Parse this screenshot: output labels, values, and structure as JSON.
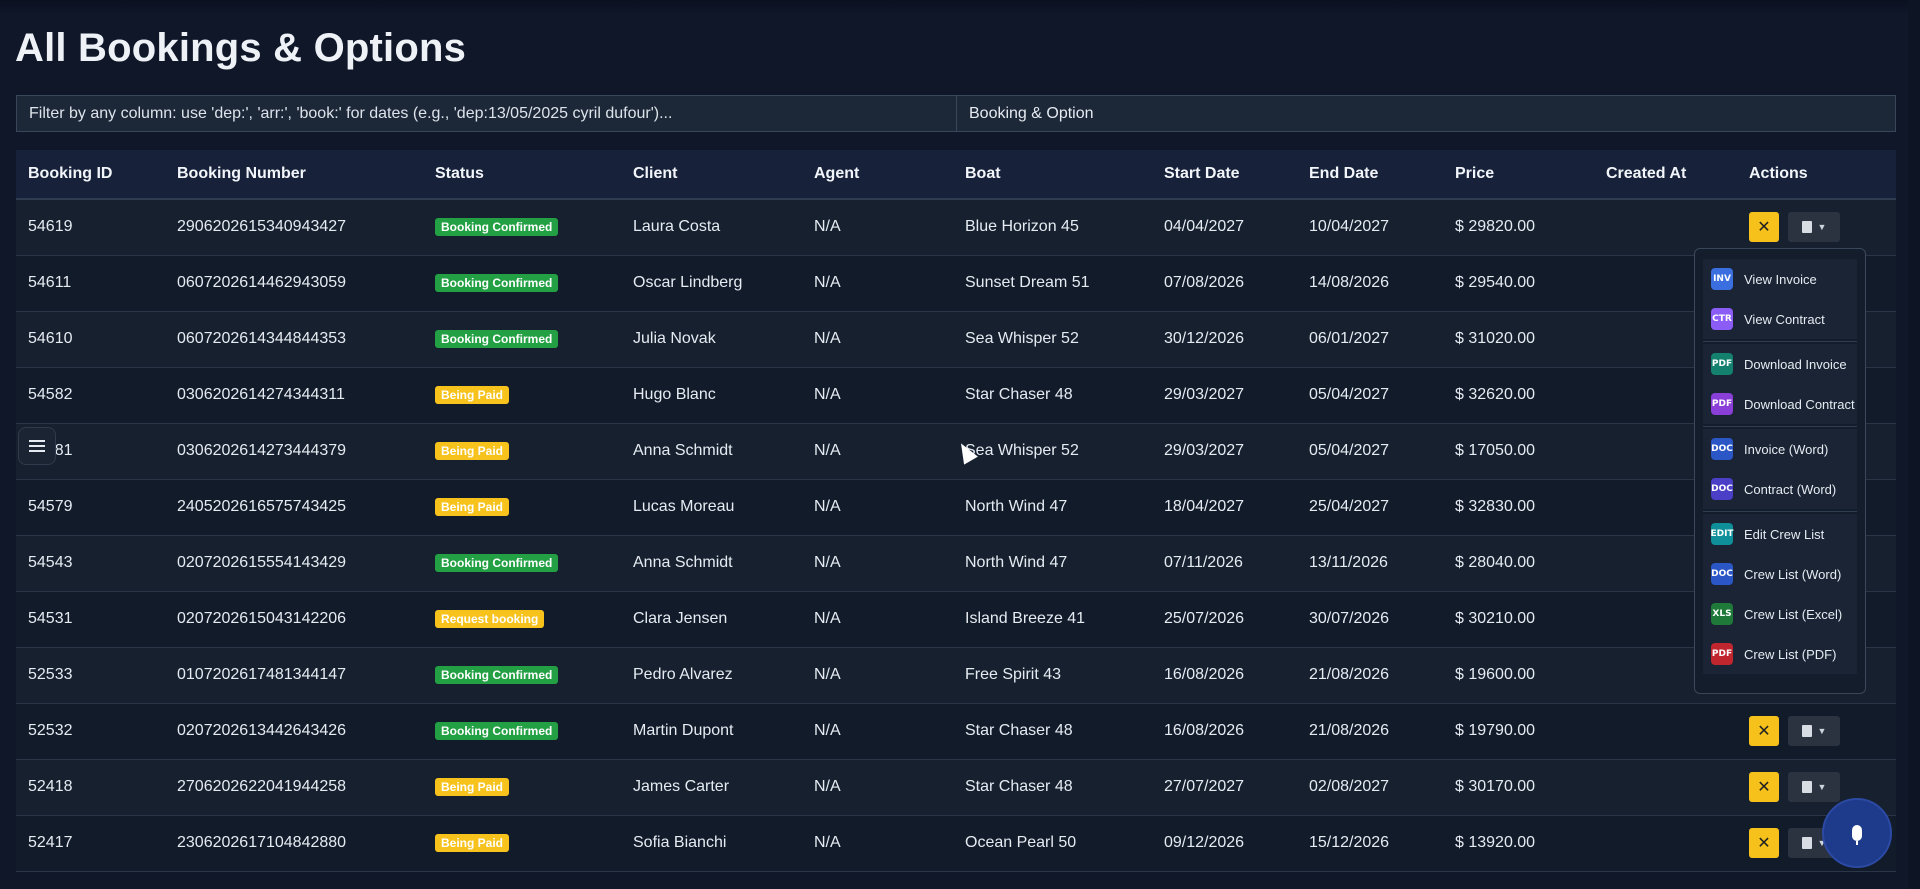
{
  "page": {
    "title": "All Bookings & Options"
  },
  "filters": {
    "search_placeholder": "Filter by any column: use 'dep:', 'arr:', 'book:' for dates (e.g., 'dep:13/05/2025 cyril dufour')...",
    "type_value": "Booking & Option"
  },
  "table": {
    "headers": [
      "Booking ID",
      "Booking Number",
      "Status",
      "Client",
      "Agent",
      "Boat",
      "Start Date",
      "End Date",
      "Price",
      "Created At",
      "Actions"
    ],
    "rows": [
      {
        "id": "54619",
        "number": "2906202615340943427",
        "status": "Booking Confirmed",
        "status_color": "green",
        "client": "Laura Costa",
        "agent": "N/A",
        "boat": "Blue Horizon 45",
        "start": "04/04/2027",
        "end": "10/04/2027",
        "price": "$ 29820.00",
        "created": ""
      },
      {
        "id": "54611",
        "number": "0607202614462943059",
        "status": "Booking Confirmed",
        "status_color": "green",
        "client": "Oscar Lindberg",
        "agent": "N/A",
        "boat": "Sunset Dream 51",
        "start": "07/08/2026",
        "end": "14/08/2026",
        "price": "$ 29540.00",
        "created": ""
      },
      {
        "id": "54610",
        "number": "0607202614344844353",
        "status": "Booking Confirmed",
        "status_color": "green",
        "client": "Julia Novak",
        "agent": "N/A",
        "boat": "Sea Whisper 52",
        "start": "30/12/2026",
        "end": "06/01/2027",
        "price": "$ 31020.00",
        "created": ""
      },
      {
        "id": "54582",
        "number": "0306202614274344311",
        "status": "Being Paid",
        "status_color": "yellow",
        "client": "Hugo Blanc",
        "agent": "N/A",
        "boat": "Star Chaser 48",
        "start": "29/03/2027",
        "end": "05/04/2027",
        "price": "$ 32620.00",
        "created": ""
      },
      {
        "id": "54581",
        "number": "0306202614273444379",
        "status": "Being Paid",
        "status_color": "yellow",
        "client": "Anna Schmidt",
        "agent": "N/A",
        "boat": "Sea Whisper 52",
        "start": "29/03/2027",
        "end": "05/04/2027",
        "price": "$ 17050.00",
        "created": ""
      },
      {
        "id": "54579",
        "number": "2405202616575743425",
        "status": "Being Paid",
        "status_color": "yellow",
        "client": "Lucas Moreau",
        "agent": "N/A",
        "boat": "North Wind 47",
        "start": "18/04/2027",
        "end": "25/04/2027",
        "price": "$ 32830.00",
        "created": ""
      },
      {
        "id": "54543",
        "number": "0207202615554143429",
        "status": "Booking Confirmed",
        "status_color": "green",
        "client": "Anna Schmidt",
        "agent": "N/A",
        "boat": "North Wind 47",
        "start": "07/11/2026",
        "end": "13/11/2026",
        "price": "$ 28040.00",
        "created": ""
      },
      {
        "id": "54531",
        "number": "0207202615043142206",
        "status": "Request booking",
        "status_color": "yellow",
        "client": "Clara Jensen",
        "agent": "N/A",
        "boat": "Island Breeze 41",
        "start": "25/07/2026",
        "end": "30/07/2026",
        "price": "$ 30210.00",
        "created": ""
      },
      {
        "id": "52533",
        "number": "0107202617481344147",
        "status": "Booking Confirmed",
        "status_color": "green",
        "client": "Pedro Alvarez",
        "agent": "N/A",
        "boat": "Free Spirit 43",
        "start": "16/08/2026",
        "end": "21/08/2026",
        "price": "$ 19600.00",
        "created": ""
      },
      {
        "id": "52532",
        "number": "0207202613442643426",
        "status": "Booking Confirmed",
        "status_color": "green",
        "client": "Martin Dupont",
        "agent": "N/A",
        "boat": "Star Chaser 48",
        "start": "16/08/2026",
        "end": "21/08/2026",
        "price": "$ 19790.00",
        "created": ""
      },
      {
        "id": "52418",
        "number": "2706202622041944258",
        "status": "Being Paid",
        "status_color": "yellow",
        "client": "James Carter",
        "agent": "N/A",
        "boat": "Star Chaser 48",
        "start": "27/07/2027",
        "end": "02/08/2027",
        "price": "$ 30170.00",
        "created": ""
      },
      {
        "id": "52417",
        "number": "2306202617104842880",
        "status": "Being Paid",
        "status_color": "yellow",
        "client": "Sofia Bianchi",
        "agent": "N/A",
        "boat": "Ocean Pearl 50",
        "start": "09/12/2026",
        "end": "15/12/2026",
        "price": "$ 13920.00",
        "created": ""
      }
    ]
  },
  "actions": {
    "cancel_icon": "close-icon",
    "doc_icon": "document-icon"
  },
  "dropdown": {
    "groups": [
      [
        {
          "label": "View Invoice",
          "tag": "INV",
          "color": "#3b6fe0"
        },
        {
          "label": "View Contract",
          "tag": "CTR",
          "color": "#8b5cf6"
        }
      ],
      [
        {
          "label": "Download Invoice",
          "tag": "PDF",
          "color": "#14806e"
        },
        {
          "label": "Download Contract",
          "tag": "PDF",
          "color": "#8b3fd9"
        }
      ],
      [
        {
          "label": "Invoice (Word)",
          "tag": "DOC",
          "color": "#2a56c6"
        },
        {
          "label": "Contract (Word)",
          "tag": "DOC",
          "color": "#4a3fc6"
        }
      ],
      [
        {
          "label": "Edit Crew List",
          "tag": "EDIT",
          "color": "#0e8f9a"
        },
        {
          "label": "Crew List (Word)",
          "tag": "DOC",
          "color": "#2a56c6"
        },
        {
          "label": "Crew List (Excel)",
          "tag": "XLS",
          "color": "#1f7a3a"
        },
        {
          "label": "Crew List (PDF)",
          "tag": "PDF",
          "color": "#c0262d"
        }
      ]
    ]
  },
  "fabs": {
    "menu_icon": "hamburger-icon",
    "mic_icon": "microphone-icon"
  }
}
